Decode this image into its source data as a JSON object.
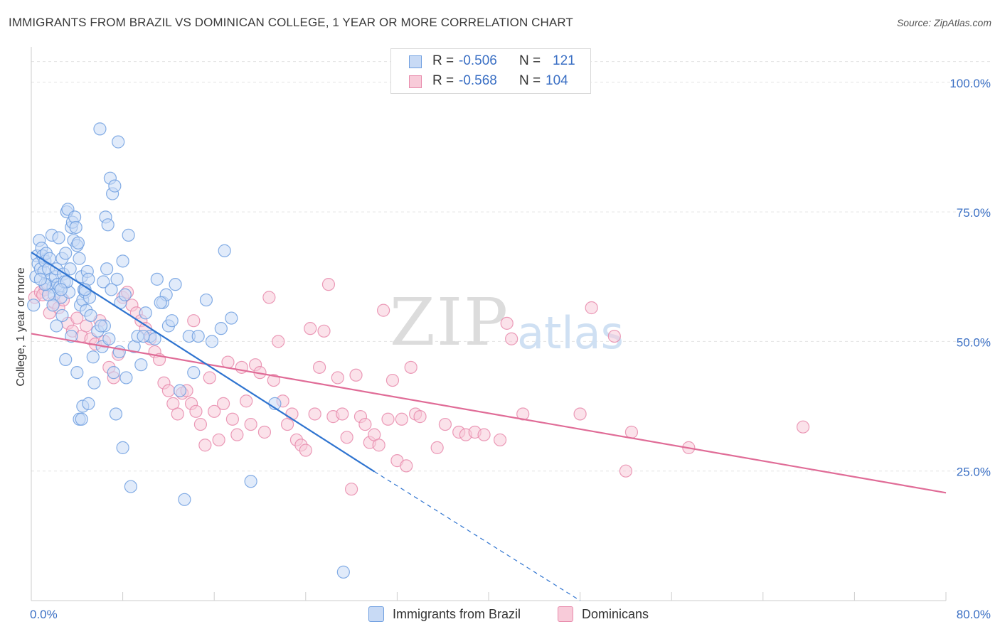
{
  "title": "IMMIGRANTS FROM BRAZIL VS DOMINICAN COLLEGE, 1 YEAR OR MORE CORRELATION CHART",
  "source": "Source: ZipAtlas.com",
  "watermark": {
    "zip": "ZIP",
    "atlas": "atlas"
  },
  "legend_top": {
    "rows": [
      {
        "r_label": "R =",
        "r_value": "-0.506",
        "n_label": "N =",
        "n_value": "121",
        "color": "#6f9fe0",
        "fill": "#c8daf5"
      },
      {
        "r_label": "R =",
        "r_value": "-0.568",
        "n_label": "N =",
        "n_value": "104",
        "color": "#e88aab",
        "fill": "#f8cbd9"
      }
    ]
  },
  "legend_bottom": {
    "items": [
      {
        "label": "Immigrants from Brazil",
        "color": "#6f9fe0",
        "fill": "#c8daf5"
      },
      {
        "label": "Dominicans",
        "color": "#e88aab",
        "fill": "#f8cbd9"
      }
    ]
  },
  "chart_data": {
    "type": "scatter",
    "title": "IMMIGRANTS FROM BRAZIL VS DOMINICAN COLLEGE, 1 YEAR OR MORE CORRELATION CHART",
    "xlabel": "",
    "ylabel": "College, 1 year or more",
    "xlim": [
      0,
      80
    ],
    "ylim": [
      0,
      106
    ],
    "x_tick_labels": [
      "0.0%",
      "80.0%"
    ],
    "y_ticks": [
      25,
      50,
      75,
      100
    ],
    "y_tick_labels": [
      "25.0%",
      "50.0%",
      "75.0%",
      "100.0%"
    ],
    "grid": true,
    "legend_position": "top-center",
    "series": [
      {
        "name": "Immigrants from Brazil",
        "color": "#6f9fe0",
        "fill": "#c8daf5",
        "trend": {
          "x": [
            0,
            30
          ],
          "y": [
            67.2,
            24.9
          ],
          "dashed_to": [
            48,
            0
          ]
        },
        "points": [
          [
            0.2,
            57
          ],
          [
            0.4,
            62.5
          ],
          [
            0.5,
            66.5
          ],
          [
            0.6,
            65
          ],
          [
            0.7,
            69.5
          ],
          [
            0.8,
            64
          ],
          [
            0.9,
            68
          ],
          [
            1.0,
            66.5
          ],
          [
            1.1,
            63.5
          ],
          [
            1.2,
            65.5
          ],
          [
            1.3,
            67
          ],
          [
            1.4,
            61
          ],
          [
            1.5,
            64
          ],
          [
            1.6,
            66
          ],
          [
            1.7,
            62
          ],
          [
            1.8,
            70.5
          ],
          [
            1.9,
            60.5
          ],
          [
            2.0,
            59
          ],
          [
            2.1,
            62.5
          ],
          [
            2.2,
            64
          ],
          [
            2.3,
            61
          ],
          [
            2.4,
            70
          ],
          [
            2.5,
            60.5
          ],
          [
            2.6,
            58.5
          ],
          [
            2.7,
            66
          ],
          [
            2.8,
            63
          ],
          [
            2.9,
            61.5
          ],
          [
            3.0,
            67
          ],
          [
            3.1,
            75
          ],
          [
            3.2,
            75.5
          ],
          [
            3.3,
            59.5
          ],
          [
            3.4,
            64
          ],
          [
            3.5,
            72
          ],
          [
            3.6,
            73
          ],
          [
            3.7,
            69.5
          ],
          [
            3.8,
            74
          ],
          [
            3.9,
            72
          ],
          [
            4.0,
            68.5
          ],
          [
            4.1,
            69
          ],
          [
            4.2,
            66
          ],
          [
            4.3,
            57
          ],
          [
            4.4,
            62.5
          ],
          [
            4.5,
            58
          ],
          [
            4.6,
            60
          ],
          [
            4.7,
            59.5
          ],
          [
            4.8,
            56
          ],
          [
            4.9,
            63.5
          ],
          [
            5.0,
            62
          ],
          [
            5.1,
            58.5
          ],
          [
            5.2,
            55
          ],
          [
            6.0,
            91
          ],
          [
            6.5,
            74
          ],
          [
            6.7,
            72.5
          ],
          [
            6.9,
            81.5
          ],
          [
            7.1,
            78.5
          ],
          [
            7.3,
            80
          ],
          [
            7.6,
            88.5
          ],
          [
            8.0,
            65.5
          ],
          [
            8.5,
            70.5
          ],
          [
            6.3,
            61.5
          ],
          [
            6.6,
            64
          ],
          [
            7.0,
            60
          ],
          [
            7.5,
            62
          ],
          [
            7.8,
            57.5
          ],
          [
            8.2,
            59
          ],
          [
            3.0,
            46.5
          ],
          [
            3.5,
            51
          ],
          [
            4.0,
            44
          ],
          [
            4.5,
            37.5
          ],
          [
            4.2,
            35
          ],
          [
            4.4,
            35
          ],
          [
            5.0,
            38
          ],
          [
            5.5,
            42
          ],
          [
            5.8,
            52
          ],
          [
            6.2,
            49
          ],
          [
            6.4,
            53
          ],
          [
            6.8,
            50.5
          ],
          [
            7.2,
            44
          ],
          [
            7.7,
            48
          ],
          [
            8.3,
            43
          ],
          [
            7.4,
            36
          ],
          [
            8.0,
            29.5
          ],
          [
            8.7,
            22
          ],
          [
            9.0,
            49
          ],
          [
            9.3,
            51
          ],
          [
            9.6,
            45.5
          ],
          [
            10.0,
            55.5
          ],
          [
            10.4,
            51
          ],
          [
            10.8,
            50.5
          ],
          [
            11.0,
            62
          ],
          [
            11.5,
            57.5
          ],
          [
            11.8,
            59
          ],
          [
            12.0,
            53
          ],
          [
            12.3,
            54
          ],
          [
            12.6,
            61
          ],
          [
            13.0,
            40.5
          ],
          [
            13.4,
            19.5
          ],
          [
            13.8,
            51
          ],
          [
            14.2,
            44
          ],
          [
            14.6,
            51
          ],
          [
            15.3,
            58
          ],
          [
            15.8,
            50
          ],
          [
            16.6,
            52.5
          ],
          [
            16.9,
            67.5
          ],
          [
            17.5,
            54.5
          ],
          [
            19.2,
            23
          ],
          [
            21.3,
            38
          ],
          [
            27.3,
            5.5
          ],
          [
            2.7,
            55
          ],
          [
            1.9,
            57
          ],
          [
            1.5,
            59
          ],
          [
            2.2,
            53
          ],
          [
            5.4,
            47
          ],
          [
            9.8,
            51
          ],
          [
            11.3,
            57.5
          ],
          [
            6.1,
            53
          ],
          [
            4.7,
            60
          ],
          [
            3.1,
            61.5
          ],
          [
            2.6,
            60
          ],
          [
            1.2,
            61
          ],
          [
            0.8,
            62
          ]
        ]
      },
      {
        "name": "Dominicans",
        "color": "#e88aab",
        "fill": "#f8cbd9",
        "trend": {
          "x": [
            0,
            80
          ],
          "y": [
            51.5,
            20.8
          ]
        },
        "points": [
          [
            0.3,
            58.5
          ],
          [
            0.8,
            59.5
          ],
          [
            1.2,
            60
          ],
          [
            1.6,
            55.5
          ],
          [
            2.0,
            57.5
          ],
          [
            2.4,
            56.5
          ],
          [
            2.8,
            58
          ],
          [
            3.2,
            53.5
          ],
          [
            3.6,
            52
          ],
          [
            4.0,
            54.5
          ],
          [
            4.4,
            51
          ],
          [
            4.8,
            53
          ],
          [
            5.2,
            50.5
          ],
          [
            5.6,
            49.5
          ],
          [
            6.0,
            54
          ],
          [
            6.4,
            50
          ],
          [
            6.8,
            45
          ],
          [
            7.2,
            43
          ],
          [
            7.6,
            47.5
          ],
          [
            8.0,
            58.5
          ],
          [
            8.4,
            59.5
          ],
          [
            8.8,
            57
          ],
          [
            9.2,
            55.5
          ],
          [
            9.6,
            54
          ],
          [
            10.0,
            52.5
          ],
          [
            10.4,
            50.5
          ],
          [
            10.8,
            48
          ],
          [
            11.2,
            46.5
          ],
          [
            11.6,
            42
          ],
          [
            12.0,
            40.5
          ],
          [
            12.4,
            38
          ],
          [
            12.8,
            36
          ],
          [
            13.2,
            40
          ],
          [
            13.6,
            40.5
          ],
          [
            14.0,
            38
          ],
          [
            14.4,
            36.5
          ],
          [
            14.8,
            34
          ],
          [
            15.2,
            30
          ],
          [
            15.6,
            43
          ],
          [
            16.0,
            36.5
          ],
          [
            16.4,
            31
          ],
          [
            16.8,
            38
          ],
          [
            17.2,
            46
          ],
          [
            17.6,
            35
          ],
          [
            18.0,
            32
          ],
          [
            18.4,
            45
          ],
          [
            18.8,
            38.5
          ],
          [
            19.2,
            34
          ],
          [
            19.6,
            45.5
          ],
          [
            20.0,
            44
          ],
          [
            20.4,
            32.5
          ],
          [
            20.8,
            58.5
          ],
          [
            21.2,
            42.5
          ],
          [
            21.6,
            50
          ],
          [
            22.0,
            38.5
          ],
          [
            22.4,
            34
          ],
          [
            22.8,
            36
          ],
          [
            23.2,
            31
          ],
          [
            23.6,
            30
          ],
          [
            24.0,
            29
          ],
          [
            24.4,
            52.5
          ],
          [
            24.8,
            36
          ],
          [
            25.2,
            45
          ],
          [
            25.6,
            52
          ],
          [
            26.0,
            61
          ],
          [
            26.4,
            35.5
          ],
          [
            26.8,
            43
          ],
          [
            27.2,
            36
          ],
          [
            27.6,
            31.5
          ],
          [
            28.0,
            21.5
          ],
          [
            28.4,
            43.5
          ],
          [
            28.8,
            35.5
          ],
          [
            29.2,
            34
          ],
          [
            29.6,
            30.5
          ],
          [
            30.0,
            32
          ],
          [
            30.4,
            30
          ],
          [
            30.8,
            56
          ],
          [
            31.2,
            35
          ],
          [
            31.6,
            42.5
          ],
          [
            32.0,
            27
          ],
          [
            32.4,
            35
          ],
          [
            32.8,
            26
          ],
          [
            33.2,
            45
          ],
          [
            33.6,
            36
          ],
          [
            34.0,
            35.5
          ],
          [
            35.5,
            29.5
          ],
          [
            36.2,
            34
          ],
          [
            37.4,
            32.5
          ],
          [
            38.0,
            32
          ],
          [
            38.8,
            32.5
          ],
          [
            39.6,
            32
          ],
          [
            41.0,
            31
          ],
          [
            41.6,
            53.5
          ],
          [
            42.0,
            50.5
          ],
          [
            43.0,
            36
          ],
          [
            48.0,
            36
          ],
          [
            49.0,
            56.5
          ],
          [
            51.0,
            51
          ],
          [
            52.5,
            32.5
          ],
          [
            52.0,
            25
          ],
          [
            57.5,
            29.5
          ],
          [
            67.5,
            33.5
          ],
          [
            1.0,
            59
          ],
          [
            14.2,
            54
          ]
        ]
      }
    ]
  }
}
